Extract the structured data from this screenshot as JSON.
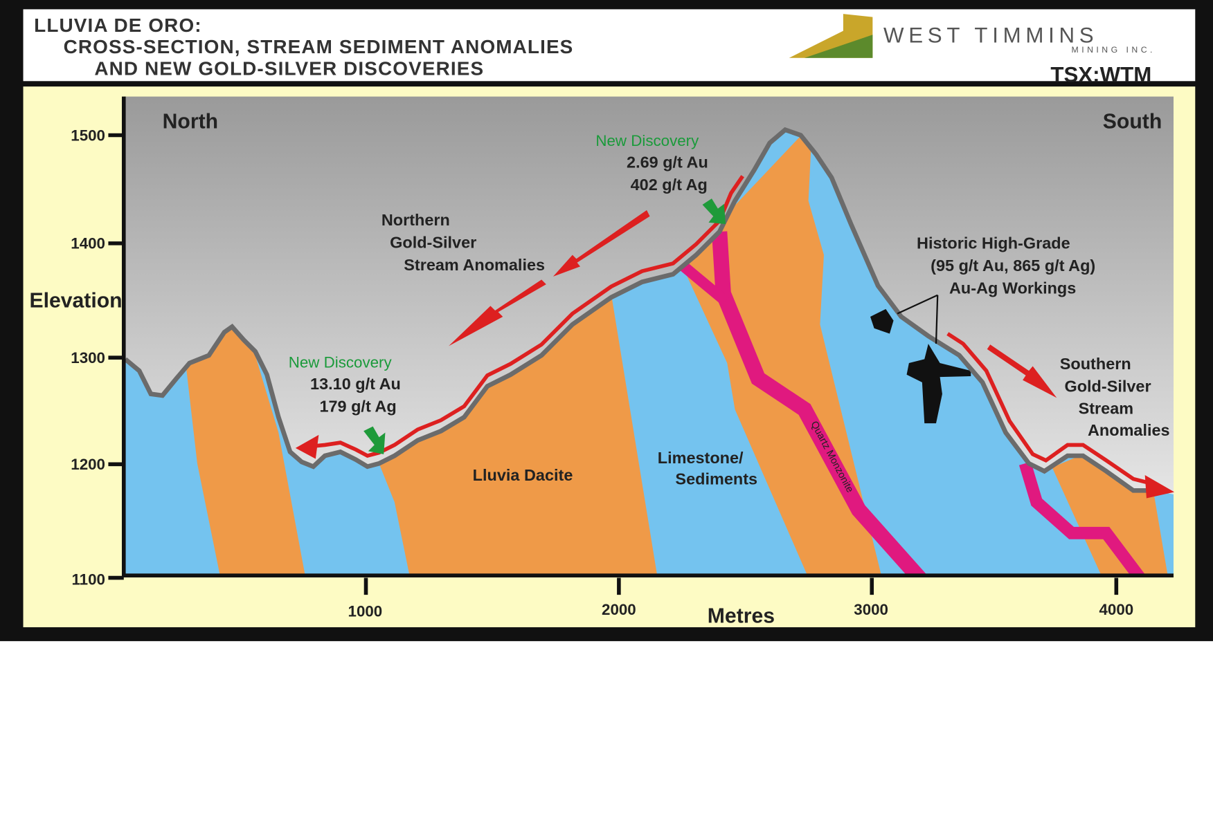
{
  "header": {
    "title_lines": [
      "LLUVIA DE ORO:",
      "CROSS-SECTION, STREAM SEDIMENT ANOMALIES",
      "AND NEW GOLD-SILVER DISCOVERIES"
    ],
    "logo_name": "WEST TIMMINS",
    "logo_sub": "MINING INC.",
    "ticker": "TSX:WTM"
  },
  "section": {
    "north": "North",
    "south": "South",
    "y_axis_label": "Elevation",
    "x_axis_label": "Metres",
    "y_ticks": [
      "1500",
      "1400",
      "1300",
      "1200",
      "1100"
    ],
    "x_ticks": [
      "1000",
      "2000",
      "3000",
      "4000"
    ],
    "discovery_north": {
      "heading": "New Discovery",
      "lines": [
        "13.10 g/t Au",
        "179 g/t Ag"
      ]
    },
    "discovery_peak": {
      "heading": "New Discovery",
      "lines": [
        "2.69 g/t Au",
        "402 g/t Ag"
      ]
    },
    "northern_anomalies": [
      "Northern",
      "Gold-Silver",
      "Stream Anomalies"
    ],
    "historic": [
      "Historic High-Grade",
      "(95 g/t Au, 865 g/t Ag)",
      "Au-Ag Workings"
    ],
    "southern_anomalies": [
      "Southern",
      "Gold-Silver",
      "Stream",
      "Anomalies"
    ],
    "dacite": "Lluvia Dacite",
    "limestone": [
      "Limestone/",
      "Sediments"
    ],
    "monzonite": "Quartz Monzonite"
  }
}
